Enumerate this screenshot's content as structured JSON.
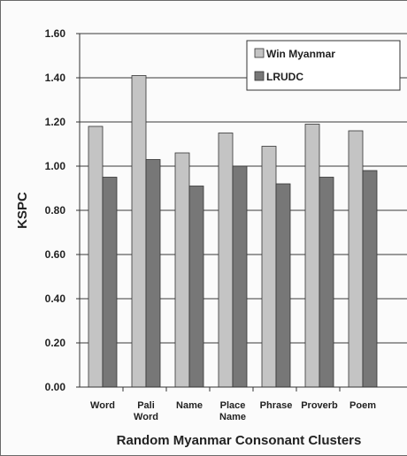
{
  "chart_data": {
    "type": "bar",
    "categories": [
      [
        "Word"
      ],
      [
        "Pali",
        "Word"
      ],
      [
        "Name"
      ],
      [
        "Place",
        "Name"
      ],
      [
        "Phrase"
      ],
      [
        "Proverb"
      ],
      [
        "Poem"
      ]
    ],
    "series": [
      {
        "name": "Win Myanmar",
        "color": "#c4c4c4",
        "values": [
          1.18,
          1.41,
          1.06,
          1.15,
          1.09,
          1.19,
          1.16
        ]
      },
      {
        "name": "LRUDC",
        "color": "#777777",
        "values": [
          0.95,
          1.03,
          0.91,
          1.0,
          0.92,
          0.95,
          0.98
        ]
      }
    ],
    "xlabel": "Random Myanmar Consonant Clusters",
    "ylabel": "KSPC",
    "ylim": [
      0,
      1.6
    ],
    "yticks": [
      "0.00",
      "0.20",
      "0.40",
      "0.60",
      "0.80",
      "1.00",
      "1.20",
      "1.40",
      "1.60"
    ],
    "grid": true,
    "legend_position": "top-right"
  }
}
